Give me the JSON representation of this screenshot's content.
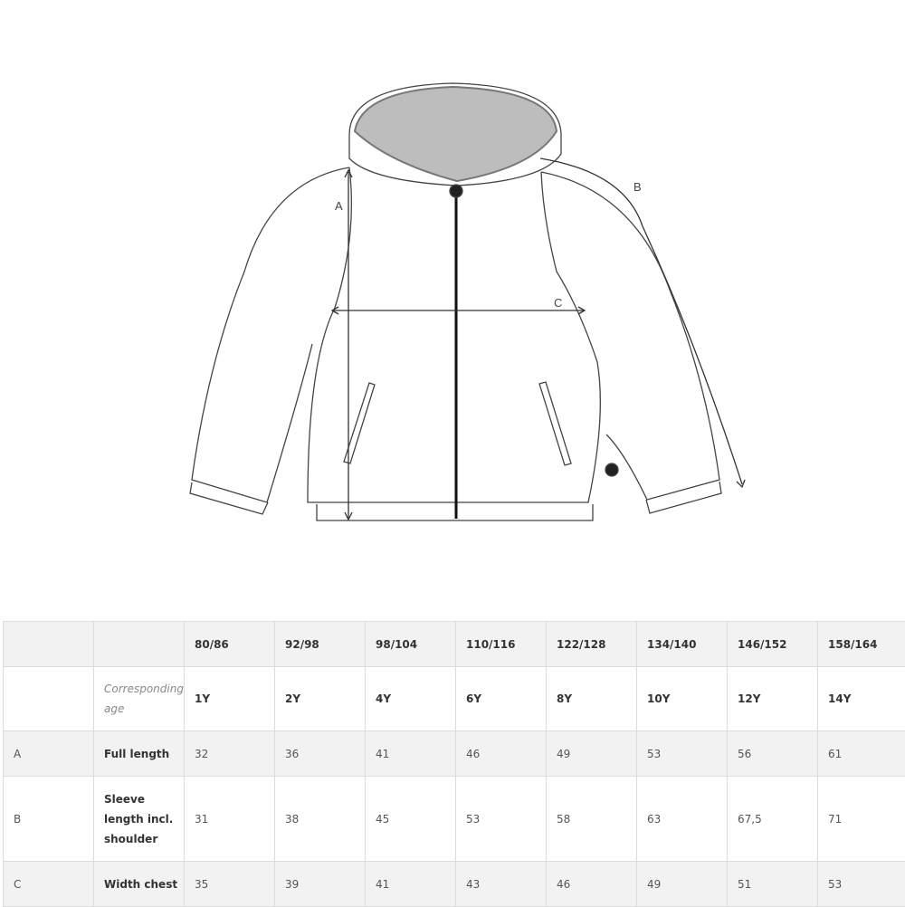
{
  "diagram": {
    "labels": {
      "a": "A",
      "b": "B",
      "c": "C"
    }
  },
  "table": {
    "sizes": [
      "80/86",
      "92/98",
      "98/104",
      "110/116",
      "122/128",
      "134/140",
      "146/152",
      "158/164"
    ],
    "age_label": "Corresponding age",
    "ages": [
      "1Y",
      "2Y",
      "4Y",
      "6Y",
      "8Y",
      "10Y",
      "12Y",
      "14Y"
    ],
    "rows": [
      {
        "code": "A",
        "label": "Full length",
        "values": [
          "32",
          "36",
          "41",
          "46",
          "49",
          "53",
          "56",
          "61"
        ]
      },
      {
        "code": "B",
        "label": "Sleeve length incl. shoulder",
        "values": [
          "31",
          "38",
          "45",
          "53",
          "58",
          "63",
          "67,5",
          "71"
        ]
      },
      {
        "code": "C",
        "label": "Width chest",
        "values": [
          "35",
          "39",
          "41",
          "43",
          "46",
          "49",
          "51",
          "53"
        ]
      }
    ]
  }
}
